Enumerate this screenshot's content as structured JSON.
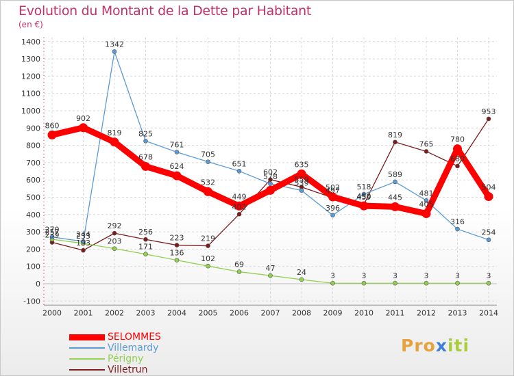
{
  "title": "Evolution du Montant de la Dette par Habitant",
  "subtitle": "(en €)",
  "brand": {
    "part1": "Pro",
    "part2": "x",
    "part3": "iti"
  },
  "chart_data": {
    "type": "line",
    "title": "Evolution du Montant de la Dette par Habitant",
    "subtitle": "(en €)",
    "xlabel": "",
    "ylabel": "",
    "x": [
      "2000",
      "2001",
      "2002",
      "2003",
      "2004",
      "2005",
      "2006",
      "2007",
      "2008",
      "2009",
      "2010",
      "2011",
      "2012",
      "2013",
      "2014"
    ],
    "y_ticks": [
      "-100",
      "0",
      "100",
      "200",
      "300",
      "400",
      "500",
      "600",
      "700",
      "800",
      "900",
      "1000",
      "1100",
      "1200",
      "1300",
      "1400"
    ],
    "ylim": [
      -100,
      1400
    ],
    "legend_position": "bottom-left",
    "series": [
      {
        "name": "SELOMMES",
        "color": "#ff0000",
        "values": [
          860,
          902,
          819,
          678,
          624,
          532,
          449,
          540,
          635,
          502,
          450,
          445,
          405,
          780,
          504
        ],
        "labels": [
          "860",
          "902",
          "819",
          "678",
          "624",
          "532",
          "449",
          "",
          "635",
          "502",
          "450",
          "445",
          "405",
          "780",
          "504"
        ]
      },
      {
        "name": "Villemardy",
        "color": "#5b9bd5",
        "values": [
          270,
          244,
          1342,
          825,
          761,
          705,
          651,
          578,
          539,
          396,
          518,
          589,
          481,
          316,
          254
        ],
        "labels": [
          "270",
          "244",
          "1342",
          "825",
          "761",
          "705",
          "651",
          "578",
          "539",
          "396",
          "518",
          "589",
          "481",
          "316",
          "254"
        ]
      },
      {
        "name": "Périgny",
        "color": "#92d050",
        "values": [
          257,
          233,
          203,
          171,
          136,
          102,
          69,
          47,
          24,
          3,
          3,
          3,
          3,
          3,
          3
        ],
        "labels": [
          "257",
          "233",
          "203",
          "171",
          "136",
          "102",
          "69",
          "47",
          "24",
          "3",
          "3",
          "3",
          "3",
          "3",
          "3"
        ]
      },
      {
        "name": "Villetrun",
        "color": "#7b1c1c",
        "values": [
          239,
          193,
          292,
          256,
          223,
          219,
          402,
          602,
          559,
          497,
          459,
          819,
          765,
          680,
          953
        ],
        "labels": [
          "239",
          "193",
          "292",
          "256",
          "223",
          "219",
          "402",
          "602",
          "559",
          "497",
          "459",
          "819",
          "765",
          "680",
          "953"
        ]
      }
    ]
  }
}
